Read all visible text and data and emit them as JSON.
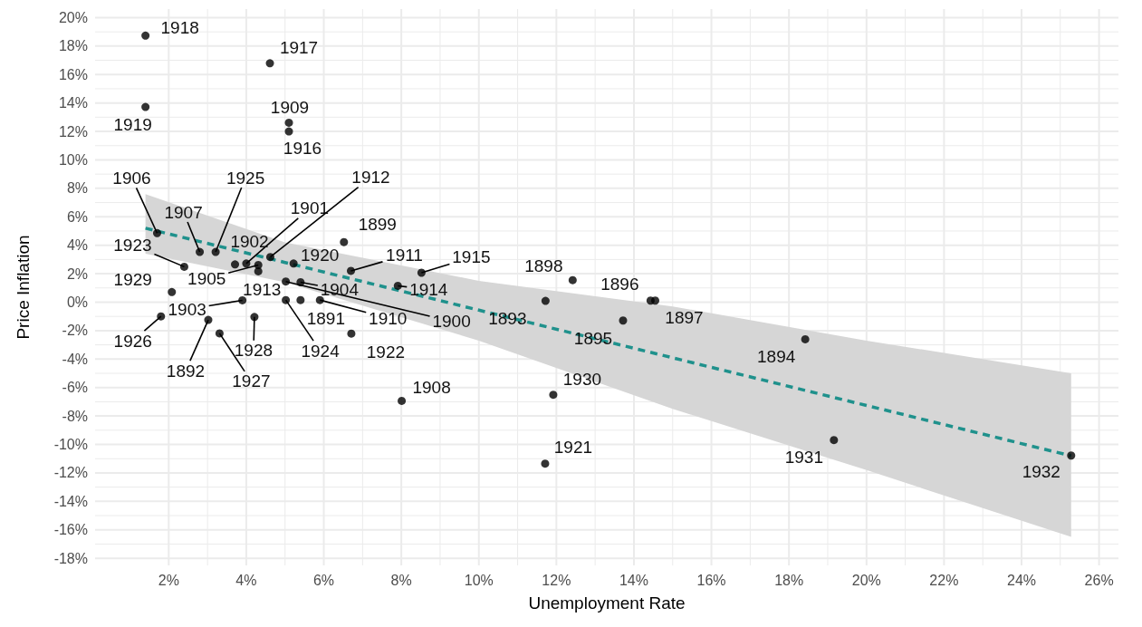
{
  "chart_data": {
    "type": "scatter",
    "xlabel": "Unemployment Rate",
    "ylabel": "Price Inflation",
    "xlim": [
      0.1,
      26.5
    ],
    "ylim": [
      -18.5,
      20.6
    ],
    "xticks": [
      {
        "value": 2,
        "label": "2%"
      },
      {
        "value": 4,
        "label": "4%"
      },
      {
        "value": 6,
        "label": "6%"
      },
      {
        "value": 8,
        "label": "8%"
      },
      {
        "value": 10,
        "label": "10%"
      },
      {
        "value": 12,
        "label": "12%"
      },
      {
        "value": 14,
        "label": "14%"
      },
      {
        "value": 16,
        "label": "16%"
      },
      {
        "value": 18,
        "label": "18%"
      },
      {
        "value": 20,
        "label": "20%"
      },
      {
        "value": 22,
        "label": "22%"
      },
      {
        "value": 24,
        "label": "24%"
      },
      {
        "value": 26,
        "label": "26%"
      }
    ],
    "yticks": [
      {
        "value": -18,
        "label": "-18%"
      },
      {
        "value": -16,
        "label": "-16%"
      },
      {
        "value": -14,
        "label": "-14%"
      },
      {
        "value": -12,
        "label": "-12%"
      },
      {
        "value": -10,
        "label": "-10%"
      },
      {
        "value": -8,
        "label": "-8%"
      },
      {
        "value": -6,
        "label": "-6%"
      },
      {
        "value": -4,
        "label": "-4%"
      },
      {
        "value": -2,
        "label": "-2%"
      },
      {
        "value": 0,
        "label": "0%"
      },
      {
        "value": 2,
        "label": "2%"
      },
      {
        "value": 4,
        "label": "4%"
      },
      {
        "value": 6,
        "label": "6%"
      },
      {
        "value": 8,
        "label": "8%"
      },
      {
        "value": 10,
        "label": "10%"
      },
      {
        "value": 12,
        "label": "12%"
      },
      {
        "value": 14,
        "label": "14%"
      },
      {
        "value": 16,
        "label": "16%"
      },
      {
        "value": 18,
        "label": "18%"
      },
      {
        "value": 20,
        "label": "20%"
      }
    ],
    "grid": true,
    "marker": "circle",
    "series": [
      {
        "color": "#000000",
        "x": [
          5.4,
          3.02,
          11.72,
          18.42,
          13.72,
          14.43,
          14.55,
          12.42,
          6.52,
          5.02,
          4.0,
          3.71,
          3.9,
          5.4,
          4.31,
          1.7,
          2.8,
          8.01,
          5.1,
          5.9,
          6.7,
          4.62,
          4.31,
          7.91,
          8.52,
          5.1,
          4.61,
          1.4,
          1.4,
          5.22,
          11.71,
          6.71,
          2.4,
          5.02,
          3.21,
          1.8,
          3.31,
          4.21,
          2.08,
          11.92,
          19.16,
          25.28
        ],
        "values": [
          0.15,
          -1.25,
          0.09,
          -2.61,
          -1.29,
          0.11,
          0.11,
          1.55,
          4.22,
          1.45,
          2.72,
          2.65,
          0.13,
          1.4,
          2.61,
          4.85,
          3.53,
          -6.94,
          12.61,
          0.15,
          2.2,
          3.17,
          2.17,
          1.15,
          2.07,
          12.0,
          16.79,
          18.73,
          13.72,
          2.72,
          -11.35,
          -2.21,
          2.49,
          0.15,
          3.53,
          -1.0,
          -2.19,
          -1.04,
          0.71,
          -6.51,
          -9.69,
          -10.78
        ]
      },
      {
        "type": "line",
        "color": "#1f918c",
        "line_style": "dashed",
        "marker": "none",
        "x": [
          1.4,
          5,
          10,
          15,
          20,
          25.28
        ],
        "values": [
          5.2,
          2.79,
          -0.56,
          -3.91,
          -7.26,
          -10.8
        ],
        "lower": [
          3.4,
          1.4,
          -2.7,
          -7.5,
          -11.8,
          -16.5
        ],
        "upper": [
          7.6,
          4.2,
          1.5,
          -0.3,
          -2.7,
          -5.0
        ]
      }
    ],
    "annotations": [
      {
        "text": "1891",
        "x": 5.4,
        "y": 0.15
      },
      {
        "text": "1892",
        "x": 3.02,
        "y": -1.25
      },
      {
        "text": "1893",
        "x": 11.72,
        "y": 0.09
      },
      {
        "text": "1894",
        "x": 18.42,
        "y": -2.61
      },
      {
        "text": "1895",
        "x": 13.72,
        "y": -1.29
      },
      {
        "text": "1896",
        "x": 14.43,
        "y": 0.11
      },
      {
        "text": "1897",
        "x": 14.55,
        "y": 0.11
      },
      {
        "text": "1898",
        "x": 12.42,
        "y": 1.55
      },
      {
        "text": "1899",
        "x": 6.52,
        "y": 4.22
      },
      {
        "text": "1900",
        "x": 5.02,
        "y": 1.45
      },
      {
        "text": "1901",
        "x": 4.0,
        "y": 2.72
      },
      {
        "text": "1902",
        "x": 3.71,
        "y": 2.65
      },
      {
        "text": "1903",
        "x": 3.9,
        "y": 0.13
      },
      {
        "text": "1904",
        "x": 5.4,
        "y": 1.4
      },
      {
        "text": "1905",
        "x": 4.31,
        "y": 2.61
      },
      {
        "text": "1906",
        "x": 1.7,
        "y": 4.85
      },
      {
        "text": "1907",
        "x": 2.8,
        "y": 3.53
      },
      {
        "text": "1908",
        "x": 8.01,
        "y": -6.94
      },
      {
        "text": "1909",
        "x": 5.1,
        "y": 12.61
      },
      {
        "text": "1910",
        "x": 5.9,
        "y": 0.15
      },
      {
        "text": "1911",
        "x": 6.7,
        "y": 2.2
      },
      {
        "text": "1912",
        "x": 4.62,
        "y": 3.17
      },
      {
        "text": "1913",
        "x": 4.31,
        "y": 2.17
      },
      {
        "text": "1914",
        "x": 7.91,
        "y": 1.15
      },
      {
        "text": "1915",
        "x": 8.52,
        "y": 2.07
      },
      {
        "text": "1916",
        "x": 5.1,
        "y": 12.0
      },
      {
        "text": "1917",
        "x": 4.61,
        "y": 16.79
      },
      {
        "text": "1918",
        "x": 1.4,
        "y": 18.73
      },
      {
        "text": "1919",
        "x": 1.4,
        "y": 13.72
      },
      {
        "text": "1920",
        "x": 5.22,
        "y": 2.72
      },
      {
        "text": "1921",
        "x": 11.71,
        "y": -11.35
      },
      {
        "text": "1922",
        "x": 6.71,
        "y": -2.21
      },
      {
        "text": "1923",
        "x": 2.4,
        "y": 2.49
      },
      {
        "text": "1924",
        "x": 5.02,
        "y": 0.15
      },
      {
        "text": "1925",
        "x": 3.21,
        "y": 3.53
      },
      {
        "text": "1926",
        "x": 1.8,
        "y": -1.0
      },
      {
        "text": "1927",
        "x": 3.31,
        "y": -2.19
      },
      {
        "text": "1928",
        "x": 4.21,
        "y": -1.04
      },
      {
        "text": "1929",
        "x": 2.08,
        "y": 0.71
      },
      {
        "text": "1930",
        "x": 11.92,
        "y": -6.51
      },
      {
        "text": "1931",
        "x": 19.16,
        "y": -9.69
      },
      {
        "text": "1932",
        "x": 25.28,
        "y": -10.78
      }
    ]
  }
}
